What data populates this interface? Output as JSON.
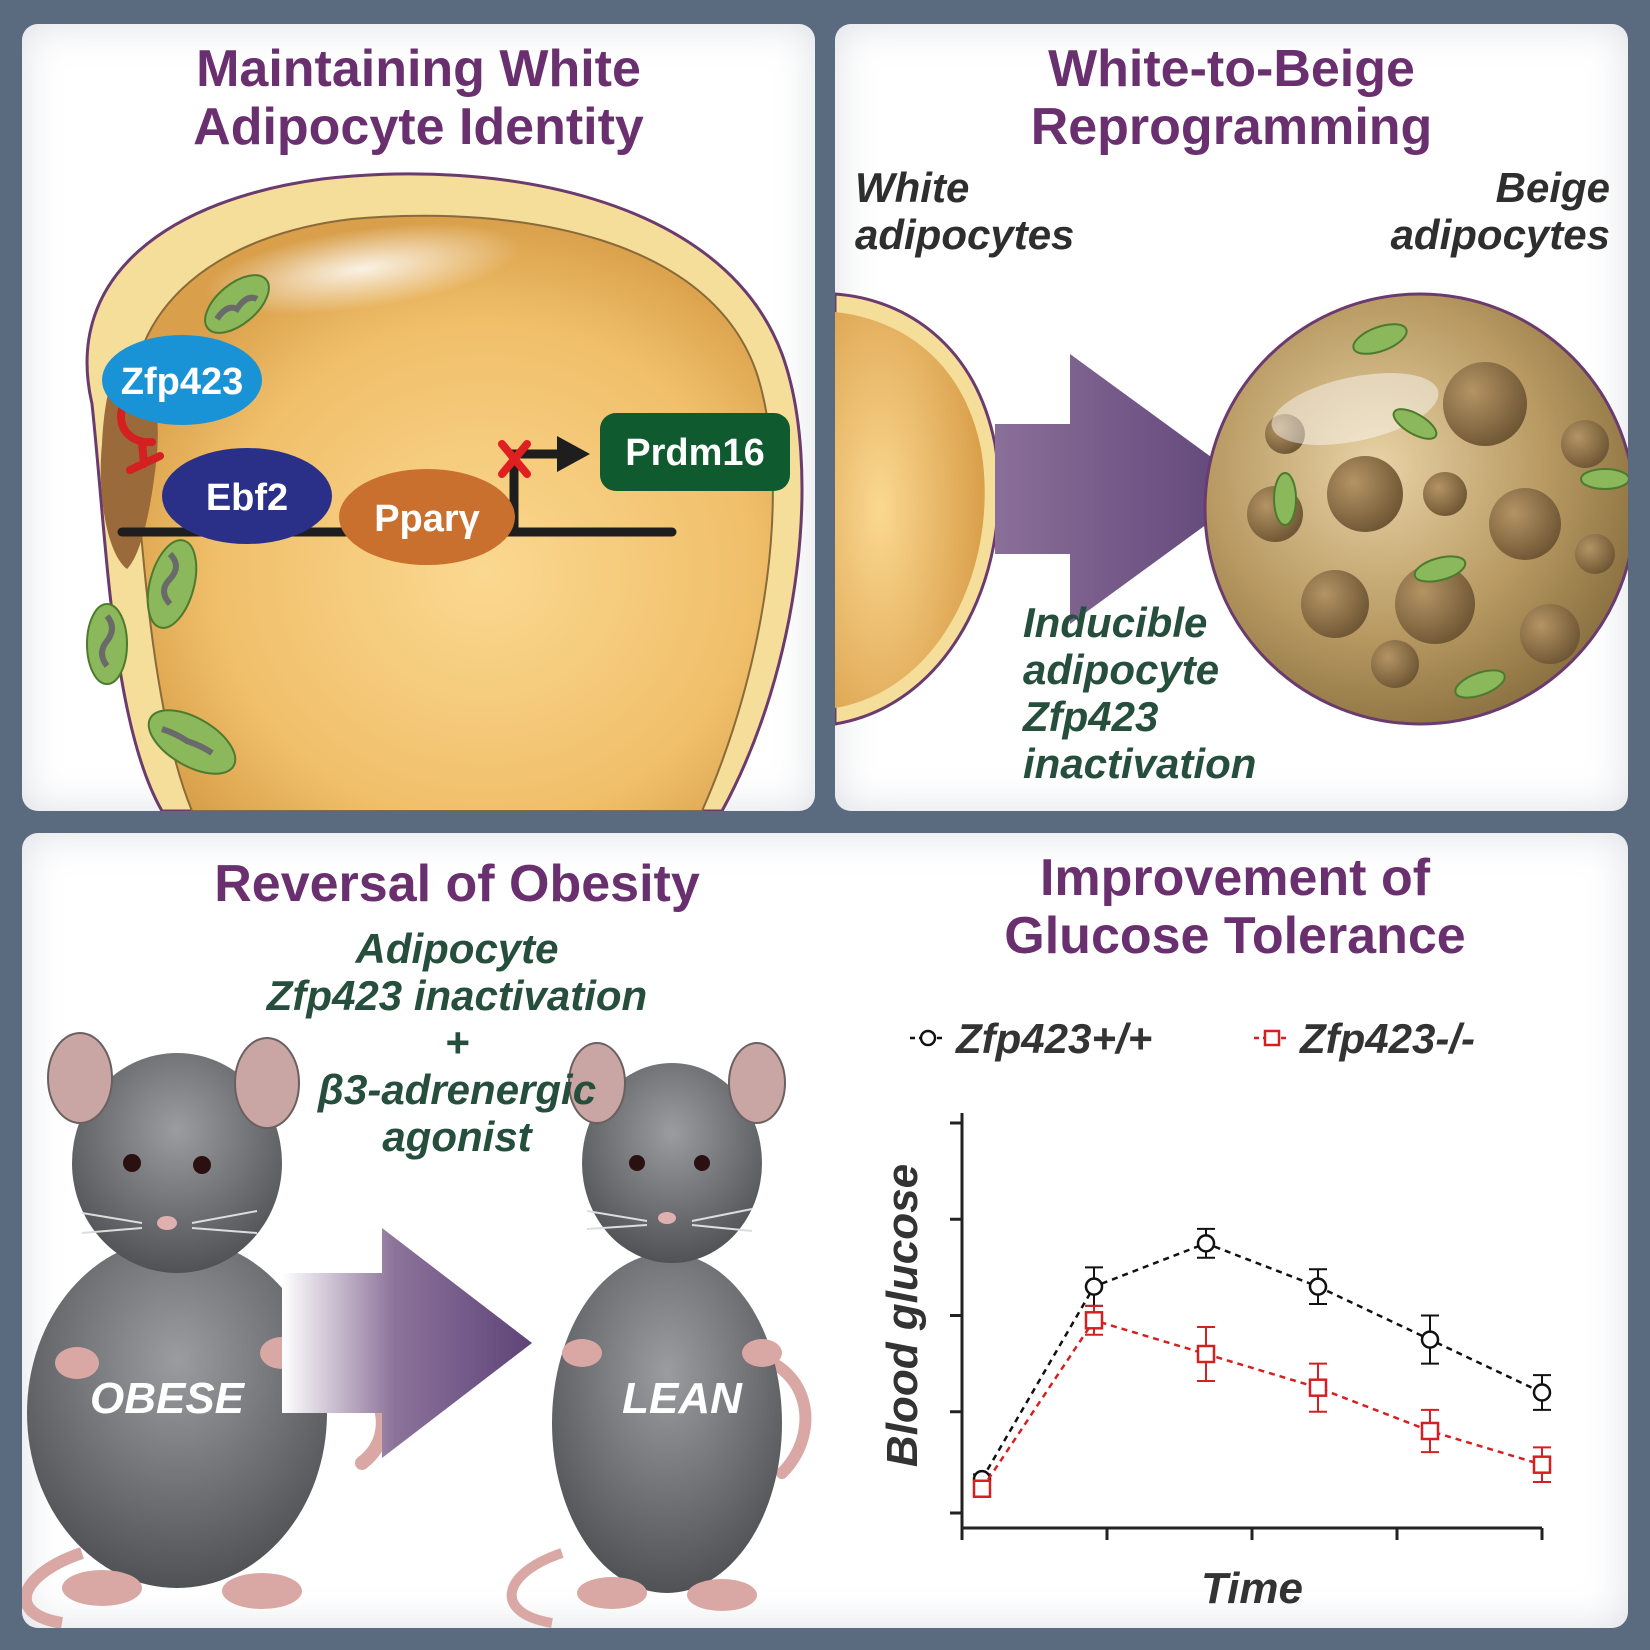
{
  "panel1": {
    "title_line1": "Maintaining White",
    "title_line2": "Adipocyte Identity",
    "labels": {
      "zfp423": "Zfp423",
      "ebf2": "Ebf2",
      "ppar": "Pparγ",
      "prdm16": "Prdm16"
    },
    "colors": {
      "zfp423": "#1a93d6",
      "ebf2": "#2a3088",
      "ppar": "#c9702f",
      "prdm16": "#0f5a2f"
    }
  },
  "panel2": {
    "title_line1": "White-to-Beige",
    "title_line2": "Reprogramming",
    "white_line1": "White",
    "white_line2": "adipocytes",
    "beige_line1": "Beige",
    "beige_line2": "adipocytes",
    "induce_line1": "Inducible",
    "induce_line2": "adipocyte",
    "induce_line3": "Zfp423",
    "induce_line4": "inactivation"
  },
  "panel3": {
    "title": "Reversal of Obesity",
    "treat_line1": "Adipocyte",
    "treat_line2": "Zfp423 inactivation",
    "treat_line3": "+",
    "treat_line4": "β3-adrenergic",
    "treat_line5": "agonist",
    "obese": "OBESE",
    "lean": "LEAN"
  },
  "panel4": {
    "title_line1": "Improvement of",
    "title_line2": "Glucose Tolerance"
  },
  "chart_data": {
    "type": "line",
    "xlabel": "Time",
    "ylabel": "Blood glucose",
    "x": [
      0,
      1,
      2,
      3,
      4,
      5
    ],
    "ylim": [
      0,
      4
    ],
    "legend_position": "top",
    "series": [
      {
        "name": "Zfp423+/+",
        "color": "#111111",
        "marker": "circle",
        "values": [
          0.3,
          2.3,
          2.75,
          2.3,
          1.75,
          1.2
        ],
        "errors": [
          0.05,
          0.2,
          0.15,
          0.18,
          0.25,
          0.18
        ]
      },
      {
        "name": "Zfp423-/-",
        "color": "#d42020",
        "marker": "square",
        "values": [
          0.2,
          1.95,
          1.6,
          1.25,
          0.8,
          0.45
        ],
        "errors": [
          0.05,
          0.15,
          0.28,
          0.25,
          0.22,
          0.18
        ]
      }
    ]
  }
}
